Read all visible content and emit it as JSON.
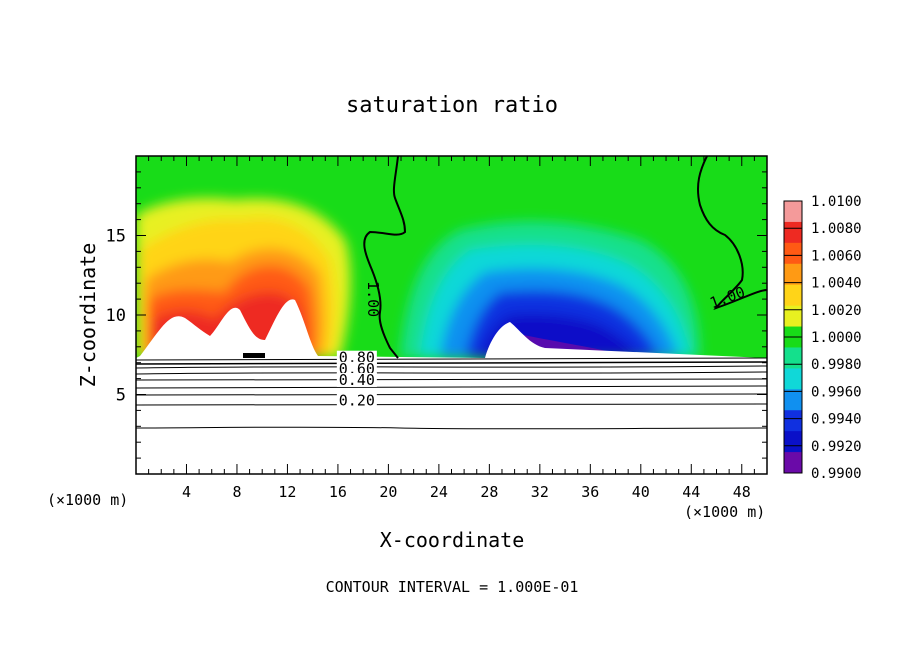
{
  "chart_data": {
    "type": "heatmap",
    "title": "saturation ratio",
    "xlabel": "X-coordinate",
    "ylabel": "Z-coordinate",
    "x_unit": "(×1000 m)",
    "x_unit_right": "(×1000 m)",
    "xlim": [
      0,
      50
    ],
    "ylim": [
      0,
      20
    ],
    "x_ticks": [
      "4",
      "8",
      "12",
      "16",
      "20",
      "24",
      "28",
      "32",
      "36",
      "40",
      "44",
      "48"
    ],
    "y_ticks": [
      "5",
      "10",
      "15"
    ],
    "colorbar": {
      "levels": [
        "1.0100",
        "1.0080",
        "1.0060",
        "1.0040",
        "1.0020",
        "1.0000",
        "0.9980",
        "0.9960",
        "0.9940",
        "0.9920",
        "0.9900"
      ],
      "colors": [
        "#f49a9a",
        "#ee2a22",
        "#ff5a14",
        "#ff9a14",
        "#ffd418",
        "#e8f020",
        "#18dc18",
        "#14e08c",
        "#10d8d8",
        "#1090f0",
        "#1030e0",
        "#0a10c8",
        "#6a0aa8"
      ]
    },
    "contour_labels": [
      {
        "text": "1.00",
        "x": 18.4,
        "y": 11.0
      },
      {
        "text": "1.00",
        "x": 47.0,
        "y": 10.8
      },
      {
        "text": "0.80",
        "x": 17.5,
        "y": 7.0
      },
      {
        "text": "0.60",
        "x": 17.5,
        "y": 6.3
      },
      {
        "text": "0.40",
        "x": 17.5,
        "y": 5.6
      },
      {
        "text": "0.20",
        "x": 17.5,
        "y": 4.3
      }
    ],
    "footer": "CONTOUR INTERVAL = 1.000E-01"
  }
}
